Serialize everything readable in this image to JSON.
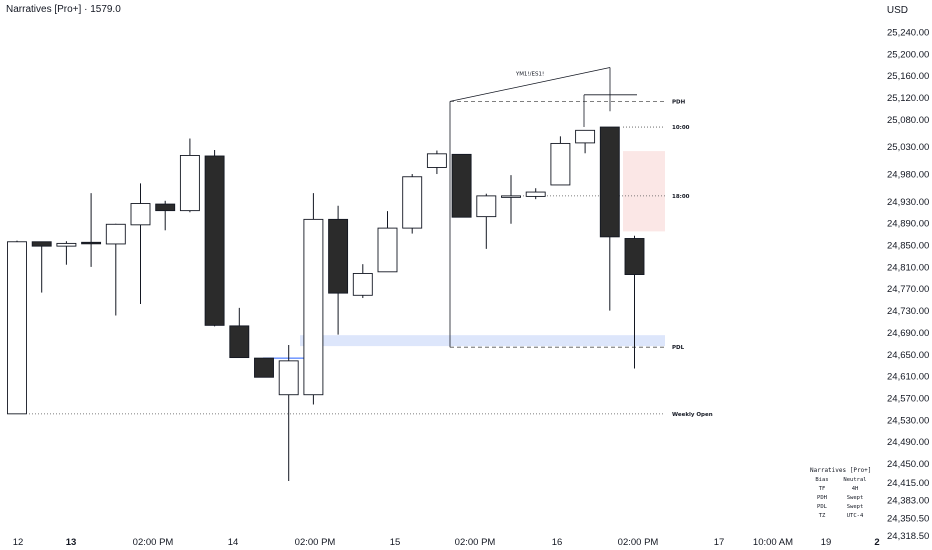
{
  "header": {
    "title": "Narratives [Pro+] · 1579.0",
    "currency": "USD"
  },
  "colors": {
    "up_body": "#ffffff",
    "down_body": "#2b2b2b",
    "wick": "#131722",
    "fvg_blue": "#dde6fb",
    "fvg_red": "#fbe7e6",
    "blue_line": "#2962ff"
  },
  "chart_data": {
    "type": "candlestick",
    "y_axis": {
      "ticks": [
        25240,
        25200,
        25160,
        25120,
        25080,
        25030,
        24980,
        24930,
        24890,
        24850,
        24810,
        24770,
        24730,
        24690,
        24650,
        24610,
        24570,
        24530,
        24490,
        24450,
        24415,
        24383,
        24350.5,
        24318.5
      ],
      "tick_labels": [
        "25,240.00",
        "25,200.00",
        "25,160.00",
        "25,120.00",
        "25,080.00",
        "25,030.00",
        "24,980.00",
        "24,930.00",
        "24,890.00",
        "24,850.00",
        "24,810.00",
        "24,770.00",
        "24,730.00",
        "24,690.00",
        "24,650.00",
        "24,610.00",
        "24,570.00",
        "24,530.00",
        "24,490.00",
        "24,450.00",
        "24,415.00",
        "24,383.00",
        "24,350.50",
        "24,318.50"
      ]
    },
    "x_axis": {
      "labels": [
        "12",
        "13",
        "02:00 PM",
        "14",
        "02:00 PM",
        "15",
        "02:00 PM",
        "16",
        "02:00 PM",
        "17",
        "10:00 AM",
        "19",
        "2"
      ],
      "bold": [
        false,
        true,
        false,
        false,
        false,
        false,
        false,
        false,
        false,
        false,
        false,
        false,
        true
      ]
    },
    "candles": [
      {
        "o": 24541,
        "h": 24858,
        "l": 24541,
        "c": 24856
      },
      {
        "o": 24856,
        "h": 24856,
        "l": 24763,
        "c": 24848
      },
      {
        "o": 24848,
        "h": 24857,
        "l": 24814,
        "c": 24853
      },
      {
        "o": 24855,
        "h": 24945,
        "l": 24810,
        "c": 24853
      },
      {
        "o": 24852,
        "h": 24889,
        "l": 24721,
        "c": 24888
      },
      {
        "o": 24887,
        "h": 24963,
        "l": 24742,
        "c": 24926
      },
      {
        "o": 24925,
        "h": 24931,
        "l": 24877,
        "c": 24913
      },
      {
        "o": 24913,
        "h": 25045,
        "l": 24910,
        "c": 25014
      },
      {
        "o": 25013,
        "h": 25024,
        "l": 24701,
        "c": 24703
      },
      {
        "o": 24702,
        "h": 24735,
        "l": 24644,
        "c": 24644
      },
      {
        "o": 24643,
        "h": 24643,
        "l": 24608,
        "c": 24608
      },
      {
        "o": 24576,
        "h": 24667,
        "l": 24418,
        "c": 24638
      },
      {
        "o": 24576,
        "h": 24945,
        "l": 24558,
        "c": 24897
      },
      {
        "o": 24897,
        "h": 24922,
        "l": 24686,
        "c": 24762
      },
      {
        "o": 24758,
        "h": 24815,
        "l": 24753,
        "c": 24798
      },
      {
        "o": 24801,
        "h": 24912,
        "l": 24801,
        "c": 24881
      },
      {
        "o": 24881,
        "h": 24980,
        "l": 24871,
        "c": 24975
      },
      {
        "o": 24992,
        "h": 25023,
        "l": 24980,
        "c": 25017
      },
      {
        "o": 25016,
        "h": 25016,
        "l": 24906,
        "c": 24901
      },
      {
        "o": 24902,
        "h": 24944,
        "l": 24843,
        "c": 24940
      },
      {
        "o": 24940,
        "h": 24978,
        "l": 24889,
        "c": 24940
      },
      {
        "o": 24939,
        "h": 24954,
        "l": 24934,
        "c": 24947
      },
      {
        "o": 24960,
        "h": 25049,
        "l": 24960,
        "c": 25036
      },
      {
        "o": 25037,
        "h": 25057,
        "l": 25018,
        "c": 25060
      },
      {
        "o": 25066,
        "h": 25066,
        "l": 24730,
        "c": 24865
      },
      {
        "o": 24862,
        "h": 24867,
        "l": 24624,
        "c": 24796
      }
    ],
    "levels": [
      {
        "label": "PDH",
        "value": 25113,
        "style": "dashed"
      },
      {
        "label": "10:00",
        "value": 25066,
        "style": "dotted"
      },
      {
        "label": "18:00",
        "value": 24940,
        "style": "dotted"
      },
      {
        "label": "PDL",
        "value": 24663,
        "style": "dashed"
      },
      {
        "label": "Weekly Open",
        "value": 24541,
        "style": "dotted"
      }
    ],
    "annotation": "YM1!/ES1!"
  },
  "panel": {
    "header": "Narratives [Pro+]",
    "rows": [
      {
        "k": "Bias",
        "v": "Neutral"
      },
      {
        "k": "TF",
        "v": "4H"
      },
      {
        "k": "PDH",
        "v": "Swept"
      },
      {
        "k": "PDL",
        "v": "Swept"
      },
      {
        "k": "TZ",
        "v": "UTC-4"
      }
    ]
  }
}
